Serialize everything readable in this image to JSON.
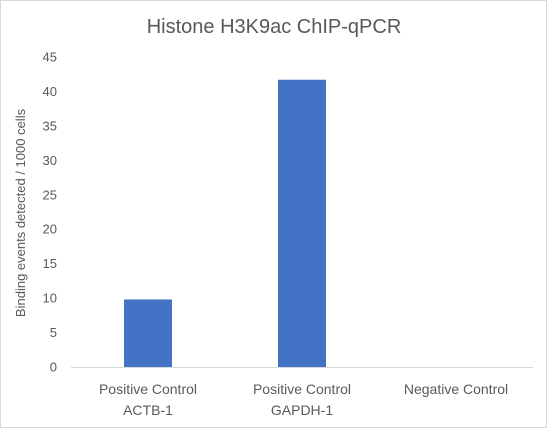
{
  "chart_data": {
    "type": "bar",
    "title": "Histone H3K9ac ChIP-qPCR",
    "xlabel": "",
    "ylabel": "Binding events detected / 1000 cells",
    "categories": [
      [
        "Positive Control",
        "ACTB-1"
      ],
      [
        "Positive Control",
        "GAPDH-1"
      ],
      [
        "Negative Control"
      ]
    ],
    "values": [
      9.8,
      41.7,
      0
    ],
    "ylim": [
      0,
      45
    ],
    "yticks": [
      0,
      5,
      10,
      15,
      20,
      25,
      30,
      35,
      40,
      45
    ],
    "grid": false,
    "legend": "none",
    "bar_color": "#4472c4"
  }
}
